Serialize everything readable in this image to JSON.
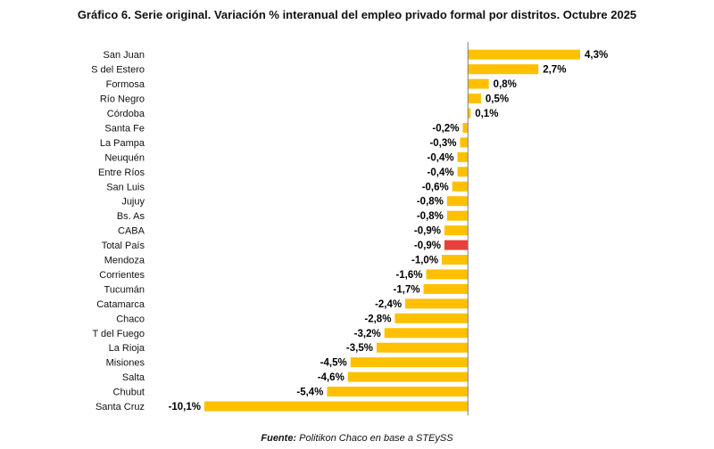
{
  "chart_data": {
    "type": "bar",
    "orientation": "horizontal",
    "title": "Gráfico 6. Serie original. Variación % interanual del empleo privado formal por distritos. Octubre 2025",
    "categories": [
      "San Juan",
      "S del Estero",
      "Formosa",
      "Río Negro",
      "Córdoba",
      "Santa Fe",
      "La Pampa",
      "Neuquén",
      "Entre Ríos",
      "San Luis",
      "Jujuy",
      "Bs. As",
      "CABA",
      "Total País",
      "Mendoza",
      "Corrientes",
      "Tucumán",
      "Catamarca",
      "Chaco",
      "T del Fuego",
      "La Rioja",
      "Misiones",
      "Salta",
      "Chubut",
      "Santa Cruz"
    ],
    "values": [
      4.3,
      2.7,
      0.8,
      0.5,
      0.1,
      -0.2,
      -0.3,
      -0.4,
      -0.4,
      -0.6,
      -0.8,
      -0.8,
      -0.9,
      -0.9,
      -1.0,
      -1.6,
      -1.7,
      -2.4,
      -2.8,
      -3.2,
      -3.5,
      -4.5,
      -4.6,
      -5.4,
      -10.1
    ],
    "value_labels": [
      "4,3%",
      "2,7%",
      "0,8%",
      "0,5%",
      "0,1%",
      "-0,2%",
      "-0,3%",
      "-0,4%",
      "-0,4%",
      "-0,6%",
      "-0,8%",
      "-0,8%",
      "-0,9%",
      "-0,9%",
      "-1,0%",
      "-1,6%",
      "-1,7%",
      "-2,4%",
      "-2,8%",
      "-3,2%",
      "-3,5%",
      "-4,5%",
      "-4,6%",
      "-5,4%",
      "-10,1%"
    ],
    "highlight_category": "Total País",
    "xlim": [
      -10.1,
      4.3
    ],
    "xlabel": "",
    "ylabel": "",
    "grid": false,
    "colors": {
      "bar": "#FFC000",
      "highlight": "#E8413C",
      "axis": "#7f7f7f"
    }
  },
  "source": {
    "label": "Fuente:",
    "text": "Politikon Chaco en base a STEySS"
  }
}
